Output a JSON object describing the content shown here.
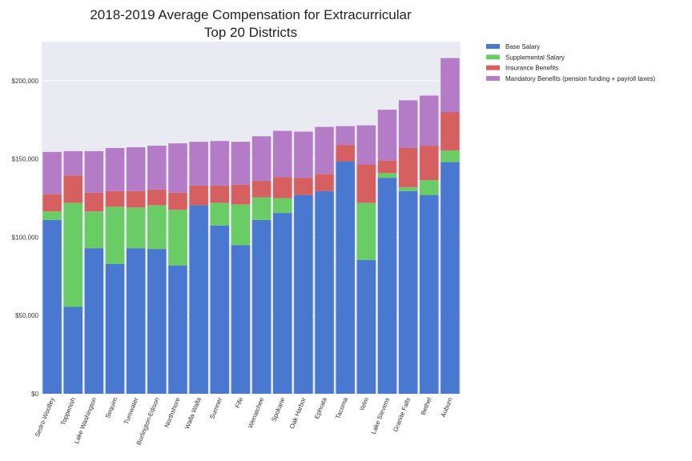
{
  "chart_data": {
    "type": "bar",
    "stacked": true,
    "title_line1": "2018-2019 Average Compensation for Extracurricular",
    "title_line2": "Top 20 Districts",
    "xlabel": "",
    "ylabel": "",
    "ylim": [
      0,
      225000
    ],
    "yticks": [
      {
        "value": 0,
        "label": "$0"
      },
      {
        "value": 50000,
        "label": "$50,000"
      },
      {
        "value": 100000,
        "label": "$100,000"
      },
      {
        "value": 150000,
        "label": "$150,000"
      },
      {
        "value": 200000,
        "label": "$200,000"
      }
    ],
    "grid": true,
    "legend_position": "outside-top-right",
    "categories": [
      "Sedro-Woolley",
      "Toppenish",
      "Lake Washington",
      "Sequim",
      "Tumwater",
      "Burlington-Edison",
      "Northshore",
      "Walla Walla",
      "Sumner",
      "Fife",
      "Wenatchee",
      "Spokane",
      "Oak Harbor",
      "Ephrata",
      "Tacoma",
      "Yelm",
      "Lake Stevens",
      "Granite Falls",
      "Bethel",
      "Auburn"
    ],
    "series": [
      {
        "name": "Base Salary",
        "color": "#4878cf",
        "values": [
          111000,
          55500,
          93000,
          83000,
          93000,
          92500,
          82000,
          120500,
          107500,
          95000,
          111000,
          115500,
          127000,
          129500,
          148500,
          85500,
          138000,
          129500,
          127000,
          148000
        ]
      },
      {
        "name": "Supplemental Salary",
        "color": "#6acc65",
        "values": [
          5500,
          66500,
          23500,
          36500,
          26000,
          28000,
          35500,
          0,
          14500,
          26000,
          14500,
          9500,
          0,
          0,
          0,
          36500,
          3000,
          2500,
          9500,
          7500
        ]
      },
      {
        "name": "Insurance Benefits",
        "color": "#d65f5f",
        "values": [
          11000,
          17500,
          12000,
          10000,
          10500,
          10000,
          11000,
          12500,
          11000,
          12500,
          10500,
          13500,
          11000,
          11000,
          10500,
          24500,
          8000,
          25000,
          22000,
          24500
        ]
      },
      {
        "name": "Mandatory Benefits (pension funding + payroll taxes)",
        "color": "#b47cc7",
        "values": [
          27000,
          15500,
          26500,
          27500,
          28000,
          28000,
          31500,
          28000,
          28500,
          27500,
          28500,
          29500,
          29500,
          30000,
          12000,
          25000,
          32500,
          30500,
          32000,
          34500
        ]
      }
    ],
    "colors": {
      "plot_background": "#eaeaf2",
      "grid": "#ffffff"
    }
  }
}
